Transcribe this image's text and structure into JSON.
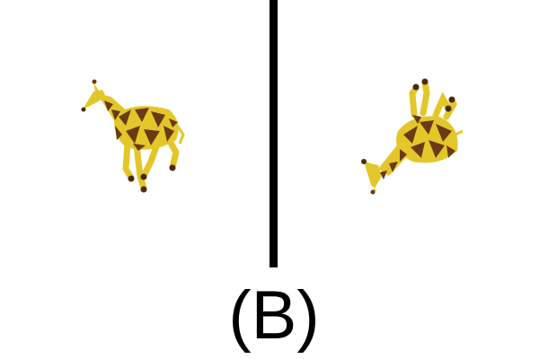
{
  "caption": "(B)",
  "colors": {
    "giraffe_yellow": "#e3c72a",
    "giraffe_brown": "#6b3a14",
    "hoof_dark": "#4a2a10",
    "divider": "#000000",
    "background": "#ffffff"
  },
  "panels": [
    {
      "name": "upright-giraffe",
      "icon": "giraffe-icon",
      "pose": "upright"
    },
    {
      "name": "flipped-giraffe",
      "icon": "giraffe-icon",
      "pose": "upside-down"
    }
  ]
}
